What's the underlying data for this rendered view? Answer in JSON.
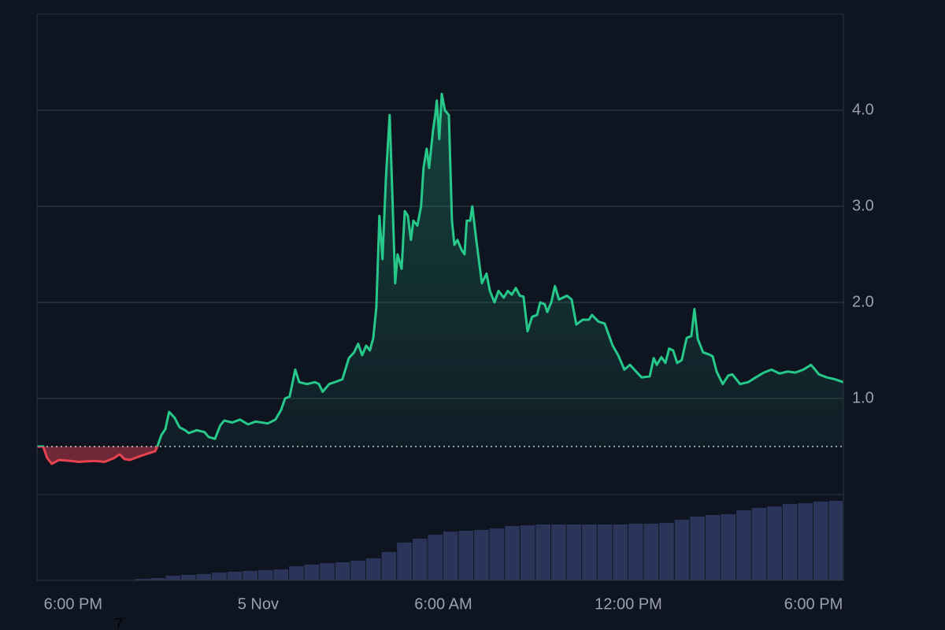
{
  "chart_data": {
    "type": "area-line",
    "x": [
      -1.17,
      -0.97,
      -0.84,
      -0.69,
      -0.46,
      -0.08,
      0.18,
      0.69,
      1.02,
      1.33,
      1.51,
      1.66,
      1.84,
      2.09,
      2.35,
      2.66,
      2.73,
      2.86,
      2.99,
      3.11,
      3.29,
      3.45,
      3.63,
      3.75,
      4.01,
      4.26,
      4.39,
      4.6,
      4.77,
      4.9,
      5.16,
      5.41,
      5.67,
      5.92,
      6.31,
      6.56,
      6.74,
      6.87,
      7.02,
      7.2,
      7.33,
      7.58,
      7.84,
      7.97,
      8.09,
      8.3,
      8.48,
      8.73,
      8.94,
      9.11,
      9.24,
      9.37,
      9.5,
      9.62,
      9.73,
      9.83,
      9.93,
      10.03,
      10.14,
      10.26,
      10.34,
      10.44,
      10.52,
      10.65,
      10.75,
      10.85,
      10.95,
      11.03,
      11.16,
      11.28,
      11.36,
      11.46,
      11.54,
      11.67,
      11.74,
      11.79,
      11.87,
      11.95,
      12.05,
      12.18,
      12.28,
      12.36,
      12.46,
      12.59,
      12.69,
      12.76,
      12.87,
      12.94,
      13.07,
      13.25,
      13.4,
      13.51,
      13.66,
      13.79,
      13.96,
      14.09,
      14.22,
      14.35,
      14.48,
      14.6,
      14.73,
      14.88,
      15.04,
      15.14,
      15.29,
      15.37,
      15.5,
      15.62,
      15.75,
      15.88,
      16.01,
      16.16,
      16.31,
      16.52,
      16.72,
      16.82,
      17.03,
      17.23,
      17.49,
      17.67,
      17.87,
      18.05,
      18.25,
      18.43,
      18.69,
      18.82,
      18.92,
      19.07,
      19.2,
      19.32,
      19.45,
      19.58,
      19.73,
      19.89,
      20.04,
      20.14,
      20.25,
      20.42,
      20.6,
      20.73,
      20.86,
      21.06,
      21.24,
      21.37,
      21.62,
      21.88,
      22.13,
      22.39,
      22.64,
      22.9,
      23.16,
      23.41,
      23.67,
      23.92,
      24.18,
      24.43,
      24.69,
      24.97
    ],
    "values": [
      0.5,
      0.5,
      0.38,
      0.32,
      0.36,
      0.35,
      0.34,
      0.35,
      0.34,
      0.38,
      0.42,
      0.37,
      0.36,
      0.39,
      0.42,
      0.45,
      0.5,
      0.62,
      0.68,
      0.86,
      0.8,
      0.7,
      0.67,
      0.64,
      0.67,
      0.65,
      0.6,
      0.58,
      0.72,
      0.77,
      0.75,
      0.78,
      0.73,
      0.76,
      0.74,
      0.78,
      0.88,
      1.0,
      1.02,
      1.3,
      1.17,
      1.15,
      1.17,
      1.15,
      1.07,
      1.15,
      1.17,
      1.2,
      1.42,
      1.48,
      1.57,
      1.45,
      1.55,
      1.5,
      1.63,
      1.95,
      2.9,
      2.45,
      3.3,
      3.95,
      3.2,
      2.2,
      2.5,
      2.35,
      2.95,
      2.9,
      2.65,
      2.85,
      2.8,
      3.0,
      3.4,
      3.6,
      3.4,
      3.8,
      3.95,
      4.1,
      3.7,
      4.17,
      4.0,
      3.95,
      2.85,
      2.6,
      2.65,
      2.55,
      2.5,
      2.85,
      2.85,
      3.0,
      2.65,
      2.2,
      2.3,
      2.12,
      2.0,
      2.12,
      2.05,
      2.12,
      2.08,
      2.15,
      2.07,
      2.06,
      1.7,
      1.85,
      1.87,
      2.0,
      1.98,
      1.9,
      2.0,
      2.17,
      2.03,
      2.05,
      2.07,
      2.03,
      1.77,
      1.82,
      1.82,
      1.87,
      1.8,
      1.78,
      1.55,
      1.45,
      1.3,
      1.35,
      1.28,
      1.22,
      1.23,
      1.42,
      1.35,
      1.43,
      1.37,
      1.52,
      1.5,
      1.37,
      1.4,
      1.63,
      1.65,
      1.93,
      1.62,
      1.48,
      1.46,
      1.44,
      1.28,
      1.15,
      1.24,
      1.25,
      1.15,
      1.17,
      1.22,
      1.27,
      1.3,
      1.26,
      1.28,
      1.27,
      1.3,
      1.35,
      1.25,
      1.22,
      1.2,
      1.17
    ],
    "baseline": 0.5,
    "up_color": "#26c98a",
    "down_color": "#e5414f",
    "xlim": [
      -1.17,
      24.97
    ],
    "xticks": [
      {
        "value": 0,
        "label": "6:00 PM"
      },
      {
        "value": 6,
        "label": "5 Nov"
      },
      {
        "value": 12,
        "label": "6:00 AM"
      },
      {
        "value": 18,
        "label": "12:00 PM"
      },
      {
        "value": 24,
        "label": "6:00 PM"
      }
    ],
    "ylim": [
      0,
      5
    ],
    "yticks": [
      {
        "value": 1,
        "label": "1.0"
      },
      {
        "value": 2,
        "label": "2.0"
      },
      {
        "value": 3,
        "label": "3.0"
      },
      {
        "value": 4,
        "label": "4.0"
      }
    ],
    "grid": true,
    "volume": {
      "color": "#2b3559",
      "vlim": [
        0,
        109
      ],
      "x": [
        2,
        2.5,
        3,
        3.5,
        4,
        4.5,
        5,
        5.5,
        6,
        6.5,
        7,
        7.5,
        8,
        8.5,
        9,
        9.5,
        10,
        10.5,
        11,
        11.5,
        12,
        12.5,
        13,
        13.5,
        14,
        14.5,
        15,
        15.5,
        16,
        16.5,
        17,
        17.5,
        18,
        18.5,
        19,
        19.5,
        20,
        20.5,
        21,
        21.5,
        22,
        22.5,
        23,
        23.5,
        24,
        24.5
      ],
      "values": [
        2,
        3,
        6,
        7,
        8,
        10,
        11,
        12,
        13,
        14,
        18,
        20,
        22,
        23,
        25,
        28,
        36,
        48,
        53,
        58,
        62,
        63,
        64,
        66,
        69,
        70,
        71,
        71,
        71,
        71,
        71,
        71,
        72,
        72,
        73,
        77,
        81,
        83,
        84,
        89,
        92,
        94,
        97,
        98,
        100,
        101
      ]
    },
    "annotation": "7"
  }
}
